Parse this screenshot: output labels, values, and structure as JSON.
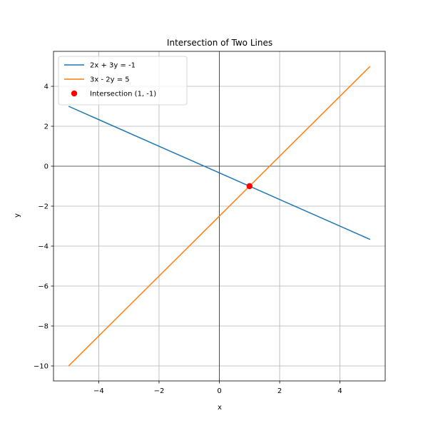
{
  "chart_data": {
    "type": "line",
    "title": "Intersection of Two Lines",
    "xlabel": "x",
    "ylabel": "y",
    "xlim": [
      -5.5,
      5.5
    ],
    "ylim": [
      -10.75,
      5.75
    ],
    "xticks": [
      -4,
      -2,
      0,
      2,
      4
    ],
    "yticks": [
      -10,
      -8,
      -6,
      -4,
      -2,
      0,
      2,
      4
    ],
    "xtick_labels": [
      "−4",
      "−2",
      "0",
      "2",
      "4"
    ],
    "ytick_labels": [
      "−10",
      "−8",
      "−6",
      "−4",
      "−2",
      "0",
      "2",
      "4"
    ],
    "grid": true,
    "zero_lines": true,
    "legend_position": "top-left",
    "series": [
      {
        "name": "2x + 3y = -1",
        "color": "#1f77b4",
        "x": [
          -5,
          5
        ],
        "y": [
          3,
          -3.6667
        ]
      },
      {
        "name": "3x - 2y = 5",
        "color": "#ff7f0e",
        "x": [
          -5,
          5
        ],
        "y": [
          -10,
          5
        ]
      }
    ],
    "points": [
      {
        "name": "Intersection (1, -1)",
        "color": "#ff0000",
        "x": 1,
        "y": -1
      }
    ]
  }
}
